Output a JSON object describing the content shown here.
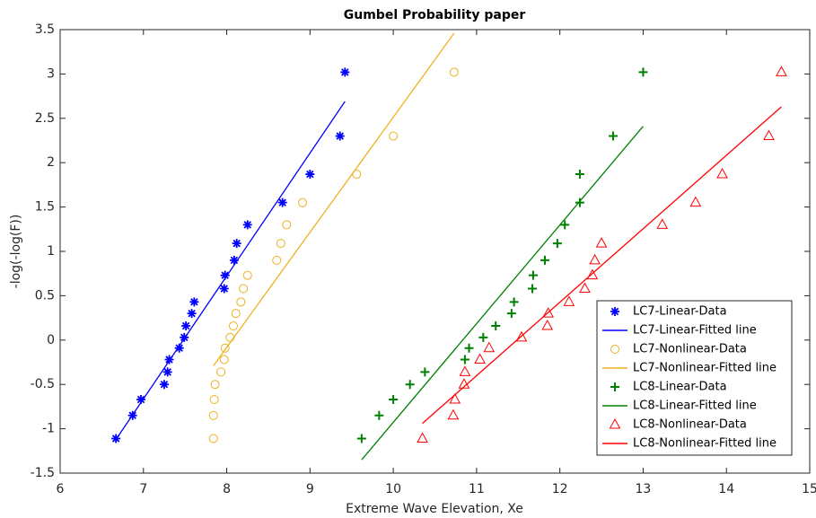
{
  "chart_data": {
    "type": "scatter",
    "title": "Gumbel Probability paper",
    "x_label": "Extreme Wave Elevation, Xe",
    "y_label": "-log(-log(F))",
    "xlim": [
      6,
      15
    ],
    "ylim": [
      -1.5,
      3.5
    ],
    "xticks": [
      6,
      7,
      8,
      9,
      10,
      11,
      12,
      13,
      14,
      15
    ],
    "yticks": [
      -1.5,
      -1,
      -0.5,
      0,
      0.5,
      1,
      1.5,
      2,
      2.5,
      3,
      3.5
    ],
    "legend": "lower right",
    "series": [
      {
        "name": "LC7-Linear-Data",
        "color": "#0000ff",
        "marker": "asterisk",
        "x": [
          6.67,
          6.87,
          6.97,
          7.25,
          7.29,
          7.31,
          7.43,
          7.49,
          7.51,
          7.58,
          7.61,
          7.97,
          7.98,
          8.09,
          8.12,
          8.25,
          8.67,
          9.0,
          9.36,
          9.42
        ],
        "values": [
          -1.11,
          -0.85,
          -0.67,
          -0.5,
          -0.36,
          -0.22,
          -0.09,
          0.03,
          0.16,
          0.3,
          0.43,
          0.58,
          0.73,
          0.9,
          1.09,
          1.3,
          1.55,
          1.87,
          2.3,
          3.02
        ]
      },
      {
        "name": "LC7-Linear-Fitted line",
        "color": "#0000ff",
        "marker": "line",
        "x": [
          6.67,
          9.42
        ],
        "values": [
          -1.12,
          2.69
        ]
      },
      {
        "name": "LC7-Nonlinear-Data",
        "color": "#edb120",
        "marker": "circle",
        "x": [
          7.84,
          7.84,
          7.85,
          7.86,
          7.93,
          7.97,
          7.98,
          8.04,
          8.08,
          8.11,
          8.17,
          8.2,
          8.25,
          8.6,
          8.65,
          8.72,
          8.91,
          9.56,
          10.0,
          10.73
        ],
        "values": [
          -1.11,
          -0.85,
          -0.67,
          -0.5,
          -0.36,
          -0.22,
          -0.09,
          0.03,
          0.16,
          0.3,
          0.43,
          0.58,
          0.73,
          0.9,
          1.09,
          1.3,
          1.55,
          1.87,
          2.3,
          3.02
        ]
      },
      {
        "name": "LC7-Nonlinear-Fitted line",
        "color": "#edb120",
        "marker": "line",
        "x": [
          7.84,
          10.73
        ],
        "values": [
          -0.29,
          3.46
        ]
      },
      {
        "name": "LC8-Linear-Data",
        "color": "#008000",
        "marker": "plus",
        "x": [
          9.62,
          9.83,
          10.0,
          10.2,
          10.38,
          10.86,
          10.91,
          11.08,
          11.23,
          11.42,
          11.45,
          11.67,
          11.68,
          11.82,
          11.97,
          12.06,
          12.24,
          12.24,
          12.64,
          13.0
        ],
        "values": [
          -1.11,
          -0.85,
          -0.67,
          -0.5,
          -0.36,
          -0.22,
          -0.09,
          0.03,
          0.16,
          0.3,
          0.43,
          0.58,
          0.73,
          0.9,
          1.09,
          1.3,
          1.55,
          1.87,
          2.3,
          3.02
        ]
      },
      {
        "name": "LC8-Linear-Fitted line",
        "color": "#008000",
        "marker": "line",
        "x": [
          9.62,
          13.0
        ],
        "values": [
          -1.35,
          2.41
        ]
      },
      {
        "name": "LC8-Nonlinear-Data",
        "color": "#ff0000",
        "marker": "triangle",
        "x": [
          10.35,
          10.72,
          10.74,
          10.85,
          10.86,
          11.04,
          11.15,
          11.54,
          11.85,
          11.86,
          12.11,
          12.3,
          12.39,
          12.42,
          12.5,
          13.23,
          13.63,
          13.95,
          14.51,
          14.66
        ],
        "values": [
          -1.11,
          -0.85,
          -0.67,
          -0.5,
          -0.36,
          -0.22,
          -0.09,
          0.03,
          0.16,
          0.3,
          0.43,
          0.58,
          0.73,
          0.9,
          1.09,
          1.3,
          1.55,
          1.87,
          2.3,
          3.02
        ]
      },
      {
        "name": "LC8-Nonlinear-Fitted line",
        "color": "#ff0000",
        "marker": "line",
        "x": [
          10.35,
          14.66
        ],
        "values": [
          -0.94,
          2.63
        ]
      }
    ]
  }
}
